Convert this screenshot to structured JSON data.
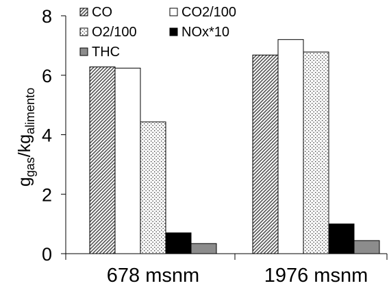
{
  "chart_data": {
    "type": "bar",
    "categories": [
      "678 msnm",
      "1976 msnm"
    ],
    "series": [
      {
        "name": "CO",
        "values": [
          6.28,
          6.68
        ],
        "color": "#555555",
        "pattern": "diagonal-hatch"
      },
      {
        "name": "CO2/100",
        "values": [
          6.24,
          7.2
        ],
        "color": "#ffffff",
        "pattern": "solid"
      },
      {
        "name": "O2/100",
        "values": [
          4.43,
          6.78
        ],
        "color": "#ffffff",
        "pattern": "dots"
      },
      {
        "name": "NOx*10",
        "values": [
          0.7,
          1.0
        ],
        "color": "#000000",
        "pattern": "solid"
      },
      {
        "name": "THC",
        "values": [
          0.34,
          0.44
        ],
        "color": "#8c8c8c",
        "pattern": "solid"
      }
    ],
    "ylim": [
      0,
      8
    ],
    "yticks": [
      "0",
      "2",
      "4",
      "6",
      "8"
    ],
    "ylabel": {
      "main1": "g",
      "sub1": "gas",
      "main2": "/kg",
      "sub2": "alimento"
    },
    "xlabel": "",
    "title": "",
    "grid": false,
    "legend_position": "top-left"
  }
}
